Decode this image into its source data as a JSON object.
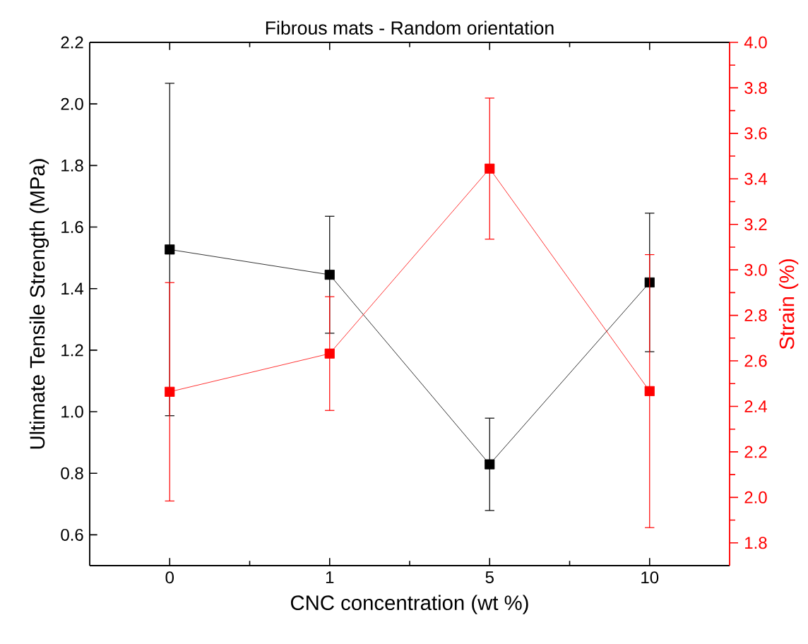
{
  "chart_data": {
    "type": "line",
    "title": "Fibrous mats - Random orientation",
    "xlabel": "CNC concentration (wt %)",
    "ylabel": "Ultimate Tensile Strength (MPa)",
    "y2label": "Strain (%)",
    "categories": [
      "0",
      "1",
      "5",
      "10"
    ],
    "series": [
      {
        "color": "#000000",
        "values": [
          1.527,
          1.445,
          0.829,
          1.42
        ],
        "errors": [
          0.54,
          0.19,
          0.15,
          0.225
        ]
      },
      {
        "color": "#ff0000",
        "axis": "y2",
        "values": [
          2.464,
          2.632,
          3.445,
          2.467
        ],
        "errors": [
          0.48,
          0.25,
          0.31,
          0.6
        ]
      }
    ],
    "ylim": [
      0.5,
      2.2
    ],
    "yticks": [
      0.6,
      0.8,
      {
        "value": 1,
        "label": "1.0"
      },
      1.2,
      1.4,
      1.6,
      1.8,
      {
        "value": 2,
        "label": "2.0"
      },
      2.2
    ],
    "y2lim": [
      1.7,
      4.0
    ],
    "y2ticks": [
      1.8,
      {
        "value": 2,
        "label": "2.0"
      },
      2.2,
      2.4,
      2.6,
      2.8,
      {
        "value": 3,
        "label": "3.0"
      },
      3.2,
      3.4,
      3.6,
      3.8,
      {
        "value": 4,
        "label": "4.0"
      }
    ],
    "grid": false,
    "marker": "square",
    "line_style": "solid"
  }
}
